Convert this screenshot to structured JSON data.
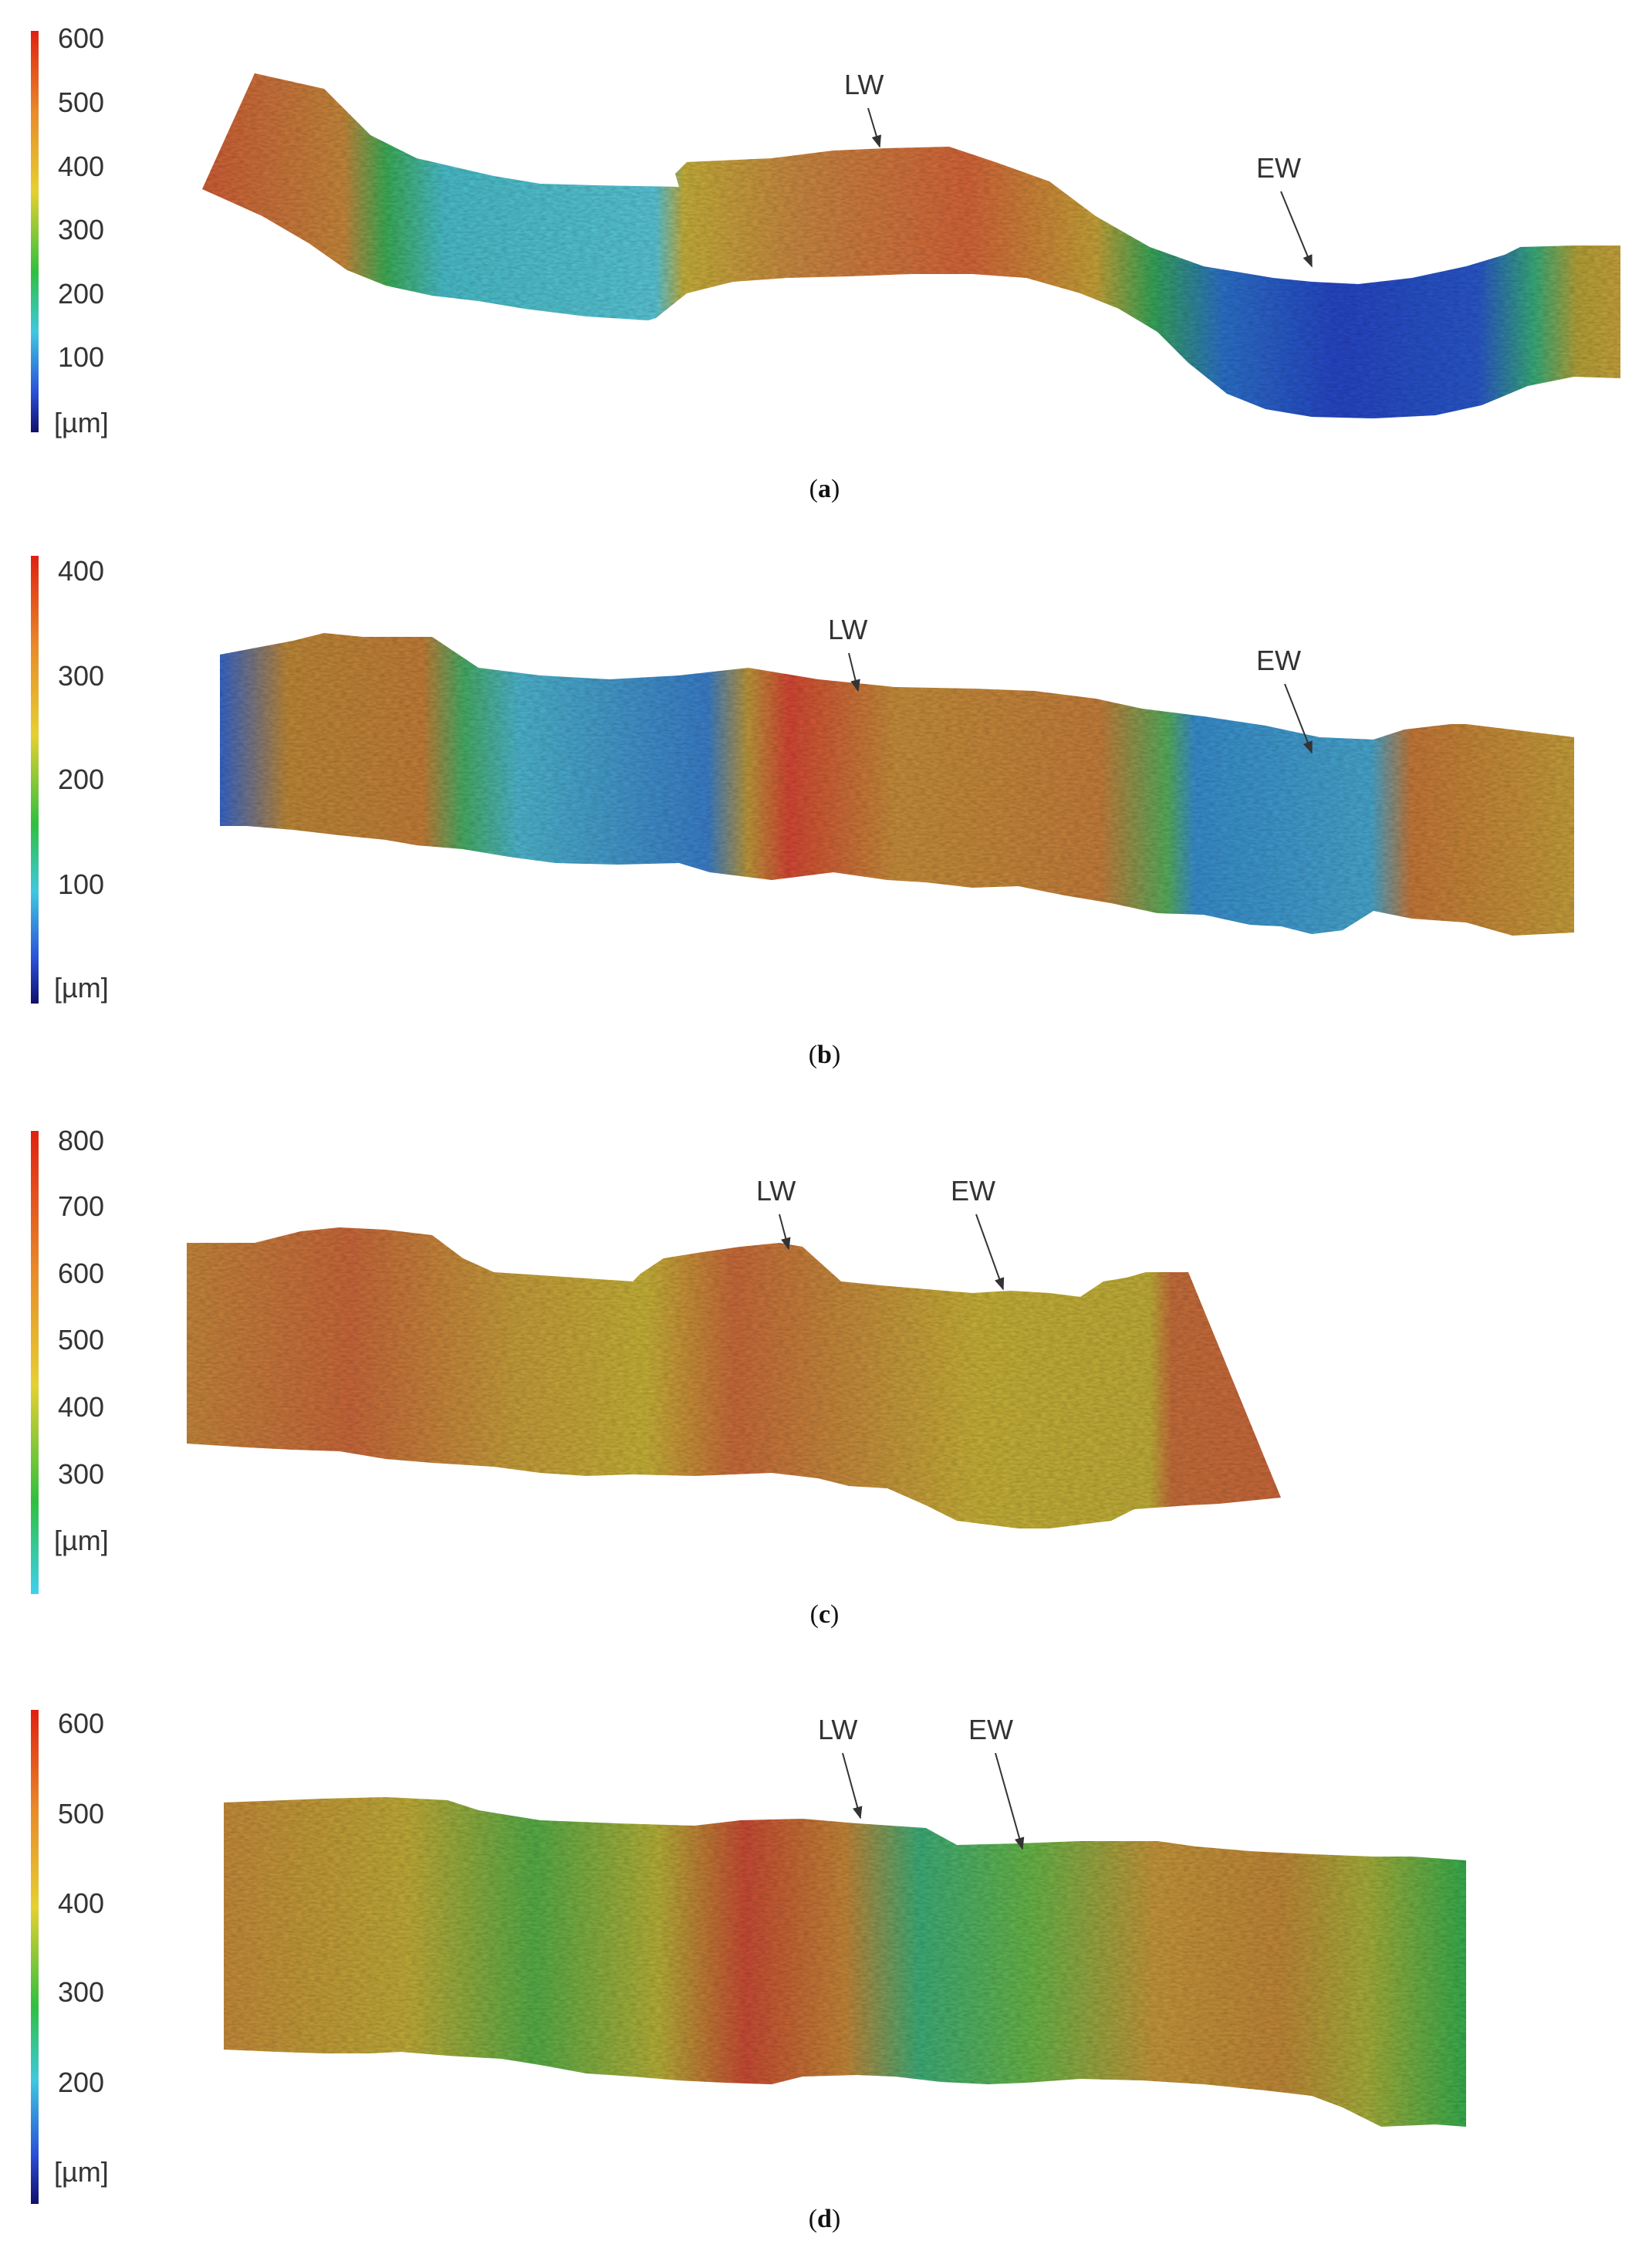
{
  "panels": [
    {
      "id": "a",
      "caption_open": "(",
      "caption_letter": "a",
      "caption_close": ")",
      "scale": {
        "ticks": [
          "600",
          "500",
          "400",
          "300",
          "200",
          "100"
        ],
        "unit": "[µm]"
      },
      "annotations": {
        "lw": "LW",
        "ew": "EW"
      }
    },
    {
      "id": "b",
      "caption_open": "(",
      "caption_letter": "b",
      "caption_close": ")",
      "scale": {
        "ticks": [
          "400",
          "300",
          "200",
          "100"
        ],
        "unit": "[µm]"
      },
      "annotations": {
        "lw": "LW",
        "ew": "EW"
      }
    },
    {
      "id": "c",
      "caption_open": "(",
      "caption_letter": "c",
      "caption_close": ")",
      "scale": {
        "ticks": [
          "800",
          "700",
          "600",
          "500",
          "400",
          "300"
        ],
        "unit": "[µm]"
      },
      "annotations": {
        "lw": "LW",
        "ew": "EW"
      }
    },
    {
      "id": "d",
      "caption_open": "(",
      "caption_letter": "d",
      "caption_close": ")",
      "scale": {
        "ticks": [
          "600",
          "500",
          "400",
          "300",
          "200"
        ],
        "unit": "[µm]"
      },
      "annotations": {
        "lw": "LW",
        "ew": "EW"
      }
    }
  ],
  "colors": {
    "red": "#e2412c",
    "orange": "#c8793a",
    "yellow": "#c9b83a",
    "green": "#3aa95a",
    "cyan": "#52c4d6",
    "blue": "#2a5bd0",
    "navy": "#1a1f7a"
  }
}
